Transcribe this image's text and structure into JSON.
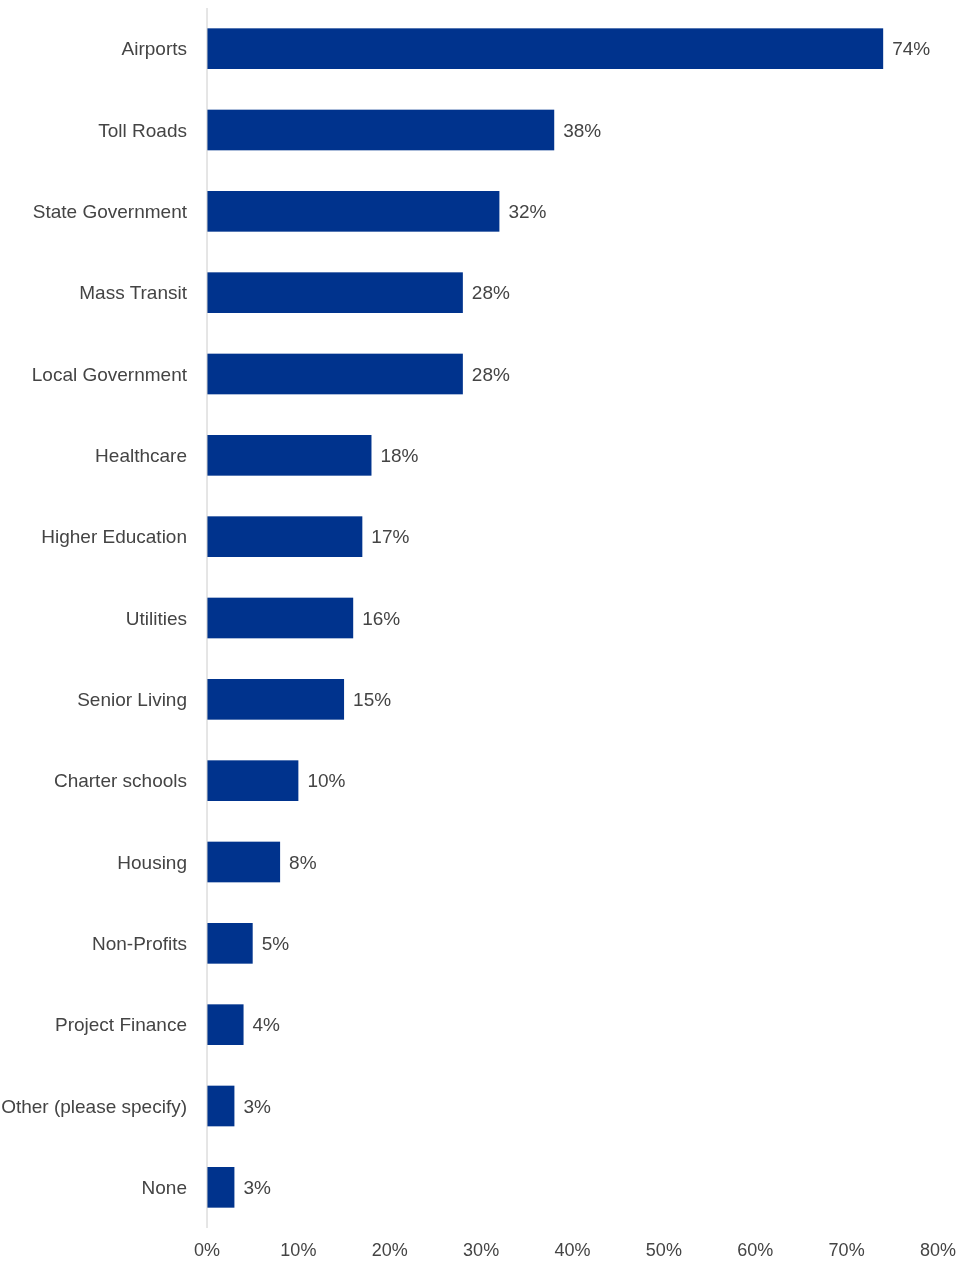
{
  "chart_data": {
    "type": "bar",
    "orientation": "horizontal",
    "categories": [
      "Airports",
      "Toll Roads",
      "State Government",
      "Mass Transit",
      "Local Government",
      "Healthcare",
      "Higher Education",
      "Utilities",
      "Senior Living",
      "Charter schools",
      "Housing",
      "Non-Profits",
      "Project Finance",
      "Other (please specify)",
      "None"
    ],
    "values": [
      74,
      38,
      32,
      28,
      28,
      18,
      17,
      16,
      15,
      10,
      8,
      5,
      4,
      3,
      3
    ],
    "value_labels": [
      "74%",
      "38%",
      "32%",
      "28%",
      "28%",
      "18%",
      "17%",
      "16%",
      "15%",
      "10%",
      "8%",
      "5%",
      "4%",
      "3%",
      "3%"
    ],
    "color": "#00338d",
    "xlim": [
      0,
      80
    ],
    "xticks": [
      {
        "value": 0,
        "label": "0%"
      },
      {
        "value": 10,
        "label": "10%"
      },
      {
        "value": 20,
        "label": "20%"
      },
      {
        "value": 30,
        "label": "30%"
      },
      {
        "value": 40,
        "label": "40%"
      },
      {
        "value": 50,
        "label": "50%"
      },
      {
        "value": 60,
        "label": "60%"
      },
      {
        "value": 70,
        "label": "70%"
      },
      {
        "value": 80,
        "label": "80%"
      }
    ],
    "grid": false
  }
}
